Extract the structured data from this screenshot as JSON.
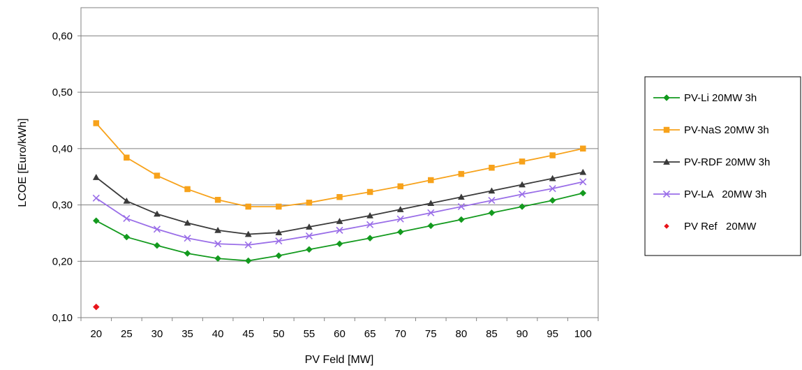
{
  "chart_data": {
    "type": "line",
    "xlabel": "PV Feld [MW]",
    "ylabel": "LCOE [Euro/kWh]",
    "ylim": [
      0.1,
      0.65
    ],
    "yticks": [
      0.1,
      0.2,
      0.3,
      0.4,
      0.5,
      0.6
    ],
    "ytick_labels": [
      "0,10",
      "0,20",
      "0,30",
      "0,40",
      "0,50",
      "0,60"
    ],
    "categories": [
      "20",
      "25",
      "30",
      "35",
      "40",
      "45",
      "50",
      "55",
      "60",
      "65",
      "70",
      "75",
      "80",
      "85",
      "90",
      "95",
      "100"
    ],
    "grid": "horizontal",
    "legend_position": "right",
    "series": [
      {
        "name": "PV-Li 20MW 3h",
        "color": "#139a1e",
        "marker": "diamond",
        "values": [
          0.272,
          0.243,
          0.228,
          0.214,
          0.205,
          0.201,
          0.21,
          0.221,
          0.231,
          0.241,
          0.252,
          0.263,
          0.274,
          0.286,
          0.297,
          0.308,
          0.321
        ]
      },
      {
        "name": "PV-NaS 20MW 3h",
        "color": "#f7a21b",
        "marker": "square",
        "values": [
          0.445,
          0.384,
          0.352,
          0.328,
          0.309,
          0.297,
          0.297,
          0.304,
          0.314,
          0.323,
          0.333,
          0.344,
          0.355,
          0.366,
          0.377,
          0.388,
          0.4
        ]
      },
      {
        "name": "PV-RDF 20MW 3h",
        "color": "#3a3a3a",
        "marker": "triangle",
        "values": [
          0.349,
          0.307,
          0.284,
          0.268,
          0.255,
          0.248,
          0.251,
          0.261,
          0.271,
          0.281,
          0.292,
          0.303,
          0.314,
          0.325,
          0.336,
          0.347,
          0.358
        ]
      },
      {
        "name": "PV-LA   20MW 3h",
        "color": "#9a6ee8",
        "marker": "x",
        "values": [
          0.312,
          0.276,
          0.257,
          0.241,
          0.231,
          0.229,
          0.236,
          0.245,
          0.255,
          0.265,
          0.275,
          0.286,
          0.297,
          0.308,
          0.319,
          0.329,
          0.341
        ]
      },
      {
        "name": "PV Ref   20MW",
        "color": "#e8151b",
        "marker": "diamond",
        "line": false,
        "values": [
          0.119,
          null,
          null,
          null,
          null,
          null,
          null,
          null,
          null,
          null,
          null,
          null,
          null,
          null,
          null,
          null,
          null
        ]
      }
    ]
  }
}
